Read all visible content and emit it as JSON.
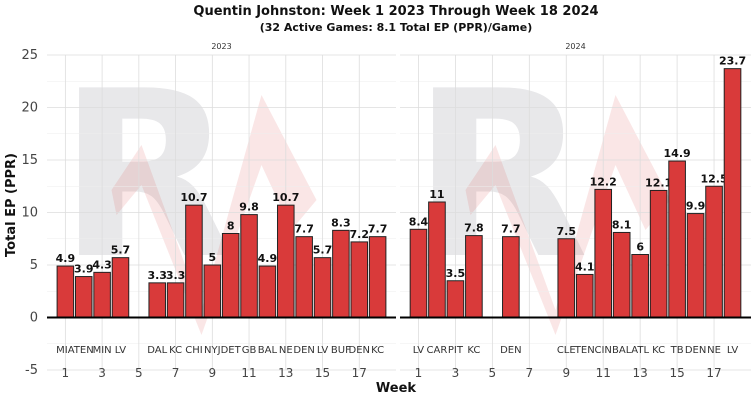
{
  "chart_data": {
    "type": "bar",
    "title": "Quentin Johnston: Week 1 2023 Through Week 18 2024",
    "subtitle": "(32 Active Games: 8.1 Total EP (PPR)/Game)",
    "xlabel": "Week",
    "ylabel": "Total EP (PPR)",
    "ylim": [
      -5,
      25
    ],
    "yticks": [
      -5,
      0,
      5,
      10,
      15,
      20,
      25
    ],
    "xlim": [
      0,
      19
    ],
    "xticks": [
      1,
      3,
      5,
      7,
      9,
      11,
      13,
      15,
      17
    ],
    "grid": true,
    "bar_color": "#d93a3a",
    "watermark_color": "#e8e8ea",
    "facets": [
      {
        "label": "2023",
        "bars": [
          {
            "week": 1,
            "opponent": "MIA",
            "value": 4.9
          },
          {
            "week": 2,
            "opponent": "TEN",
            "value": 3.9
          },
          {
            "week": 3,
            "opponent": "MIN",
            "value": 4.3
          },
          {
            "week": 4,
            "opponent": "LV",
            "value": 5.7
          },
          {
            "week": 6,
            "opponent": "DAL",
            "value": 3.3
          },
          {
            "week": 7,
            "opponent": "KC",
            "value": 3.3
          },
          {
            "week": 8,
            "opponent": "CHI",
            "value": 10.7
          },
          {
            "week": 9,
            "opponent": "NYJ",
            "value": 5
          },
          {
            "week": 10,
            "opponent": "DET",
            "value": 8
          },
          {
            "week": 11,
            "opponent": "GB",
            "value": 9.8
          },
          {
            "week": 12,
            "opponent": "BAL",
            "value": 4.9
          },
          {
            "week": 13,
            "opponent": "NE",
            "value": 10.7
          },
          {
            "week": 14,
            "opponent": "DEN",
            "value": 7.7
          },
          {
            "week": 15,
            "opponent": "LV",
            "value": 5.7
          },
          {
            "week": 16,
            "opponent": "BUF",
            "value": 8.3
          },
          {
            "week": 17,
            "opponent": "DEN",
            "value": 7.2
          },
          {
            "week": 18,
            "opponent": "KC",
            "value": 7.7
          }
        ]
      },
      {
        "label": "2024",
        "bars": [
          {
            "week": 1,
            "opponent": "LV",
            "value": 8.4
          },
          {
            "week": 2,
            "opponent": "CAR",
            "value": 11
          },
          {
            "week": 3,
            "opponent": "PIT",
            "value": 3.5
          },
          {
            "week": 4,
            "opponent": "KC",
            "value": 7.8
          },
          {
            "week": 6,
            "opponent": "DEN",
            "value": 7.7
          },
          {
            "week": 9,
            "opponent": "CLE",
            "value": 7.5
          },
          {
            "week": 10,
            "opponent": "TEN",
            "value": 4.1
          },
          {
            "week": 11,
            "opponent": "CIN",
            "value": 12.2
          },
          {
            "week": 12,
            "opponent": "BAL",
            "value": 8.1
          },
          {
            "week": 13,
            "opponent": "ATL",
            "value": 6
          },
          {
            "week": 14,
            "opponent": "KC",
            "value": 12.1
          },
          {
            "week": 15,
            "opponent": "TB",
            "value": 14.9
          },
          {
            "week": 16,
            "opponent": "DEN",
            "value": 9.9
          },
          {
            "week": 17,
            "opponent": "NE",
            "value": 12.5
          },
          {
            "week": 18,
            "opponent": "LV",
            "value": 23.7
          }
        ]
      }
    ]
  }
}
